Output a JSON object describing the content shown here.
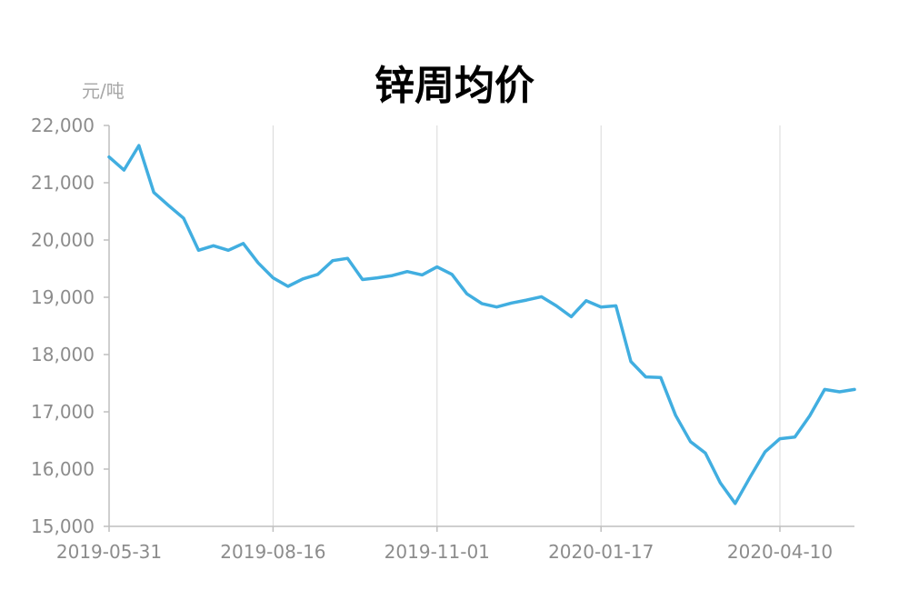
{
  "chart_data": {
    "type": "line",
    "title": "锌周均价",
    "ylabel": "元/吨",
    "xlabel": "",
    "ylim": [
      15000,
      22000
    ],
    "yticks": [
      15000,
      16000,
      17000,
      18000,
      19000,
      20000,
      21000,
      22000
    ],
    "ytick_labels": [
      "15,000",
      "16,000",
      "17,000",
      "18,000",
      "19,000",
      "20,000",
      "21,000",
      "22,000"
    ],
    "xtick_labels": [
      "2019-05-31",
      "2019-08-16",
      "2019-11-01",
      "2020-01-17",
      "2020-04-10"
    ],
    "xtick_index": [
      0,
      11,
      22,
      33,
      45
    ],
    "grid": "vertical",
    "series": [
      {
        "color": "#41aee0",
        "values": [
          21450,
          21220,
          21650,
          20830,
          20600,
          20380,
          19820,
          19900,
          19820,
          19940,
          19600,
          19340,
          19190,
          19320,
          19400,
          19640,
          19680,
          19310,
          19340,
          19380,
          19450,
          19390,
          19530,
          19400,
          19060,
          18890,
          18830,
          18900,
          18950,
          19010,
          18850,
          18660,
          18940,
          18830,
          18850,
          17880,
          17610,
          17600,
          16940,
          16480,
          16280,
          15760,
          15400,
          15860,
          16300,
          16530,
          16560,
          16930,
          17390,
          17350,
          17390
        ]
      }
    ]
  }
}
